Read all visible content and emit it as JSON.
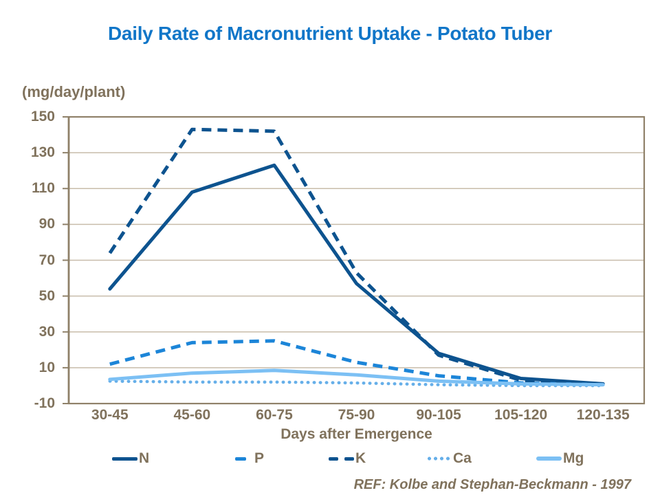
{
  "title": "Daily Rate of Macronutrient Uptake - Potato Tuber",
  "reference": "REF: Kolbe and Stephan-Beckmann - 1997",
  "colors": {
    "title_blue": "#1176C8",
    "dark_blue": "#0D538F",
    "medium_blue": "#1C85D8",
    "sky_blue": "#66AFE9",
    "light_blue": "#7CC0F4",
    "text_brown": "#80725C",
    "axis_brown": "#8F8169",
    "gridline_tan": "#C8BCAA"
  },
  "chart_data": {
    "type": "line",
    "title": "Daily Rate of Macronutrient Uptake - Potato Tuber",
    "y_unit_label": "(mg/day/plant)",
    "xlabel": "Days after Emergence",
    "ylabel": "",
    "ylim": [
      -10,
      150
    ],
    "y_ticks": [
      150,
      130,
      110,
      90,
      70,
      50,
      30,
      10,
      -10
    ],
    "grid": true,
    "legend_position": "bottom",
    "categories": [
      "30-45",
      "45-60",
      "60-75",
      "75-90",
      "90-105",
      "105-120",
      "120-135"
    ],
    "series": [
      {
        "name": "N",
        "style": "solid",
        "color": "#0D538F",
        "values": [
          54,
          108,
          123,
          57,
          18,
          4,
          1
        ]
      },
      {
        "name": "P",
        "style": "dashed",
        "color": "#1C85D8",
        "values": [
          12,
          24,
          25,
          13,
          5.5,
          1.5,
          0.5
        ]
      },
      {
        "name": "K",
        "style": "dashed",
        "color": "#0D538F",
        "values": [
          74,
          143,
          142,
          63,
          17,
          3,
          1
        ]
      },
      {
        "name": "Ca",
        "style": "dotted",
        "color": "#66AFE9",
        "values": [
          2.5,
          2,
          2,
          1.5,
          0.5,
          0,
          0
        ]
      },
      {
        "name": "Mg",
        "style": "solid",
        "color": "#7CC0F4",
        "values": [
          3.5,
          7,
          8.5,
          6,
          2.5,
          1,
          0.5
        ]
      }
    ]
  }
}
